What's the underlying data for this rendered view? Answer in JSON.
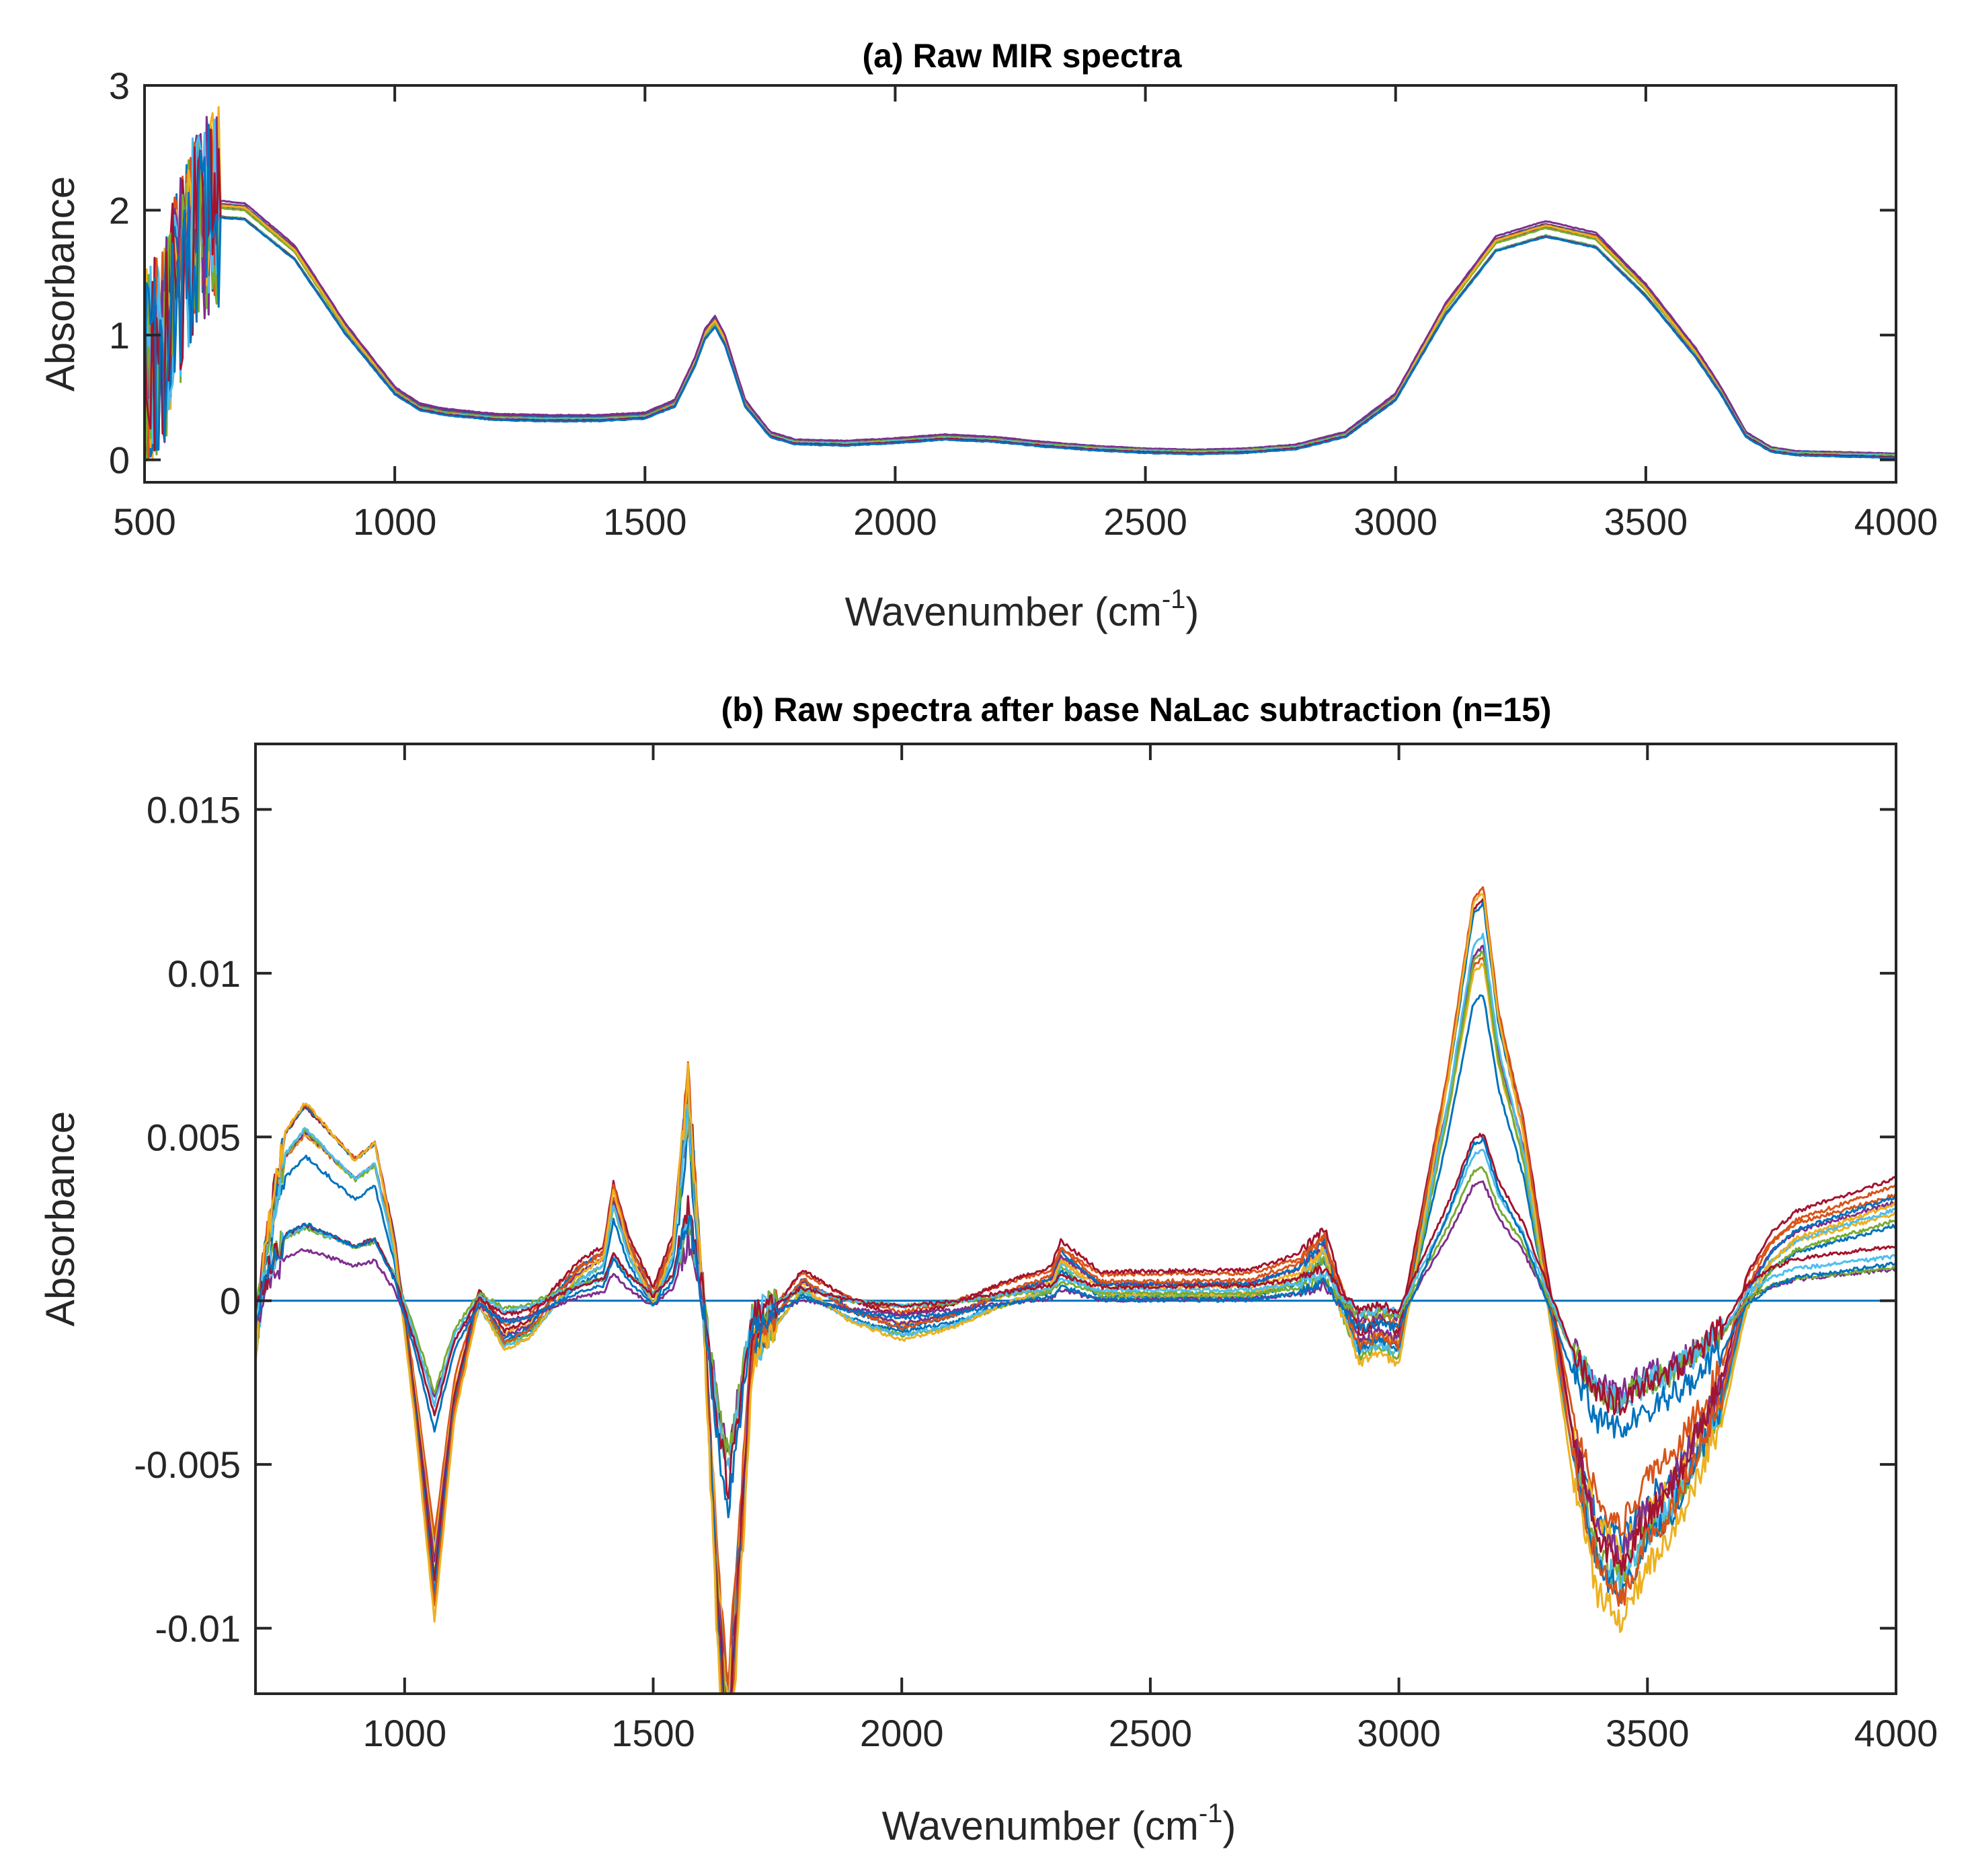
{
  "colors": [
    "#0072BD",
    "#D95319",
    "#EDB120",
    "#7E2F8E",
    "#77AC30",
    "#4DBEEE",
    "#A2142F"
  ],
  "chart_data": [
    {
      "type": "line",
      "title": "(a) Raw MIR spectra",
      "xlabel_main": "Wavenumber (cm",
      "xlabel_sup": "-1",
      "xlabel_close": ")",
      "ylabel": "Absorbance",
      "xlim": [
        500,
        4000
      ],
      "ylim": [
        -0.18,
        3
      ],
      "xticks": [
        500,
        1000,
        1500,
        2000,
        2500,
        3000,
        3500,
        4000
      ],
      "xtick_labels": [
        "500",
        "1000",
        "1500",
        "2000",
        "2500",
        "3000",
        "3500",
        "4000"
      ],
      "yticks": [
        0,
        1,
        2,
        3
      ],
      "ytick_labels": [
        "0",
        "1",
        "2",
        "3"
      ],
      "grid": false,
      "series_count": 15,
      "shape": {
        "x": [
          500,
          540,
          560,
          600,
          640,
          700,
          800,
          900,
          1000,
          1050,
          1100,
          1200,
          1300,
          1400,
          1500,
          1560,
          1600,
          1620,
          1640,
          1660,
          1700,
          1750,
          1800,
          1900,
          2000,
          2100,
          2200,
          2300,
          2400,
          2500,
          2600,
          2700,
          2800,
          2900,
          3000,
          3100,
          3200,
          3300,
          3400,
          3500,
          3600,
          3650,
          3700,
          3750,
          3800,
          3900,
          4000
        ],
        "y": [
          0.7,
          0.9,
          1.3,
          1.8,
          2.0,
          1.98,
          1.65,
          1.05,
          0.55,
          0.42,
          0.38,
          0.34,
          0.33,
          0.33,
          0.35,
          0.45,
          0.78,
          1.0,
          1.1,
          0.95,
          0.45,
          0.2,
          0.14,
          0.13,
          0.15,
          0.18,
          0.16,
          0.12,
          0.09,
          0.07,
          0.06,
          0.07,
          0.1,
          0.2,
          0.5,
          1.2,
          1.72,
          1.84,
          1.75,
          1.35,
          0.85,
          0.55,
          0.2,
          0.08,
          0.05,
          0.04,
          0.03
        ]
      }
    },
    {
      "type": "line",
      "title": "(b) Raw spectra after base NaLac subtraction (n=15)",
      "xlabel_main": "Wavenumber (cm",
      "xlabel_sup": "-1",
      "xlabel_close": ")",
      "ylabel": "Absorbance",
      "xlim": [
        700,
        4000
      ],
      "ylim": [
        -0.012,
        0.017
      ],
      "xticks": [
        1000,
        1500,
        2000,
        2500,
        3000,
        3500,
        4000
      ],
      "xtick_labels": [
        "1000",
        "1500",
        "2000",
        "2500",
        "3000",
        "3500",
        "4000"
      ],
      "yticks": [
        -0.01,
        -0.005,
        0,
        0.005,
        0.01,
        0.015
      ],
      "ytick_labels": [
        "-0.01",
        "-0.005",
        "0",
        "0.005",
        "0.01",
        "0.015"
      ],
      "grid": false,
      "baseline": 0,
      "series_count": 15,
      "shape": {
        "x": [
          700,
          720,
          760,
          800,
          850,
          900,
          940,
          980,
          1020,
          1060,
          1100,
          1150,
          1200,
          1250,
          1300,
          1350,
          1400,
          1420,
          1450,
          1500,
          1540,
          1570,
          1600,
          1630,
          1650,
          1700,
          1800,
          1900,
          2000,
          2100,
          2200,
          2300,
          2320,
          2400,
          2500,
          2600,
          2700,
          2800,
          2850,
          2880,
          2920,
          2960,
          3000,
          3050,
          3100,
          3150,
          3170,
          3200,
          3250,
          3300,
          3350,
          3400,
          3450,
          3500,
          3550,
          3600,
          3650,
          3700,
          3750,
          3800,
          3900,
          4000
        ],
        "y": [
          -0.001,
          0.001,
          0.003,
          0.0035,
          0.003,
          0.0025,
          0.0028,
          0.001,
          -0.002,
          -0.0055,
          -0.002,
          0.0,
          -0.0008,
          -0.0006,
          0.0,
          0.0005,
          0.0008,
          0.002,
          0.001,
          0.0,
          0.001,
          0.004,
          0.0,
          -0.006,
          -0.009,
          -0.001,
          0.0003,
          -0.0003,
          -0.0006,
          -0.0004,
          0.0,
          0.0003,
          0.0008,
          0.0002,
          0.0002,
          0.0002,
          0.0002,
          0.0005,
          0.001,
          0.0,
          -0.001,
          -0.0008,
          -0.001,
          0.0015,
          0.004,
          0.007,
          0.0072,
          0.005,
          0.003,
          0.0,
          -0.003,
          -0.005,
          -0.0055,
          -0.0045,
          -0.004,
          -0.003,
          -0.002,
          0.0,
          0.0008,
          0.0012,
          0.0015,
          0.0018
        ]
      }
    }
  ]
}
